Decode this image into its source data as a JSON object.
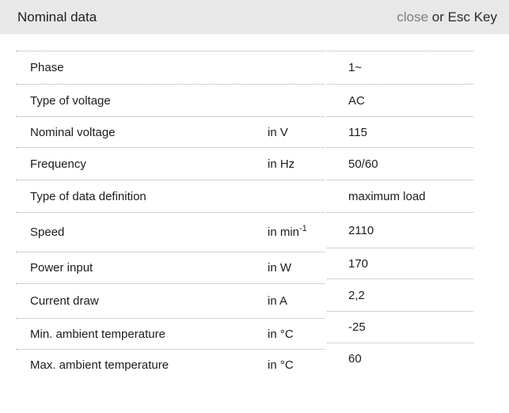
{
  "header": {
    "title": "Nominal data",
    "close_label": "close",
    "esc_label": "or Esc Key"
  },
  "colors": {
    "header_bg": "#e8e8e8",
    "close_gray": "#7d7d7d",
    "text": "#1c1c1c",
    "dotted_border": "#a6a6a6"
  },
  "table": {
    "rows": [
      {
        "label": "Phase",
        "unit": "",
        "unit_sup": "",
        "value": "1~"
      },
      {
        "label": "Type of voltage",
        "unit": "",
        "unit_sup": "",
        "value": "AC"
      },
      {
        "label": "Nominal voltage",
        "unit": "in V",
        "unit_sup": "",
        "value": "115"
      },
      {
        "label": "Frequency",
        "unit": "in Hz",
        "unit_sup": "",
        "value": "50/60"
      },
      {
        "label": "Type of data definition",
        "unit": "",
        "unit_sup": "",
        "value": "maximum load"
      },
      {
        "label": "Speed",
        "unit": "in min",
        "unit_sup": "-1",
        "value": "2110"
      },
      {
        "label": "Power input",
        "unit": "in W",
        "unit_sup": "",
        "value": "170"
      },
      {
        "label": "Current draw",
        "unit": "in A",
        "unit_sup": "",
        "value": "2,2"
      },
      {
        "label": "Min. ambient temperature",
        "unit": "in °C",
        "unit_sup": "",
        "value": "-25"
      },
      {
        "label": "Max. ambient temperature",
        "unit": "in °C",
        "unit_sup": "",
        "value": "60"
      }
    ]
  }
}
